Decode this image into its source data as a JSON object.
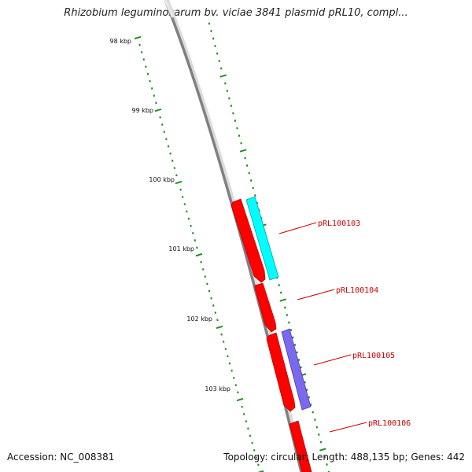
{
  "title": "Rhizobium leguminosarum bv. viciae 3841 plasmid pRL10, compl...",
  "footer": {
    "accession": "Accession: NC_008381",
    "summary": "Topology: circular; Length: 488,135 bp; Genes: 442"
  },
  "ruler": {
    "labels": [
      "98 kbp",
      "99 kbp",
      "100 kbp",
      "101 kbp",
      "102 kbp",
      "103 kbp"
    ]
  },
  "genes": [
    {
      "id": "pRL100103",
      "strand": "+",
      "color": "#00ffff"
    },
    {
      "id": "pRL100104",
      "strand": "-",
      "color": "#ff0000"
    },
    {
      "id": "pRL100105",
      "strand": "+",
      "color": "#7b68ee"
    },
    {
      "id": "pRL100106",
      "strand": "-",
      "color": "#ff0000"
    }
  ],
  "colors": {
    "backbone": "#808080",
    "ticks": "#228b22",
    "forward_gene": "#00ffff",
    "reverse_gene": "#ff0000",
    "purple_gene": "#7b68ee",
    "label_text": "#cc0000"
  }
}
